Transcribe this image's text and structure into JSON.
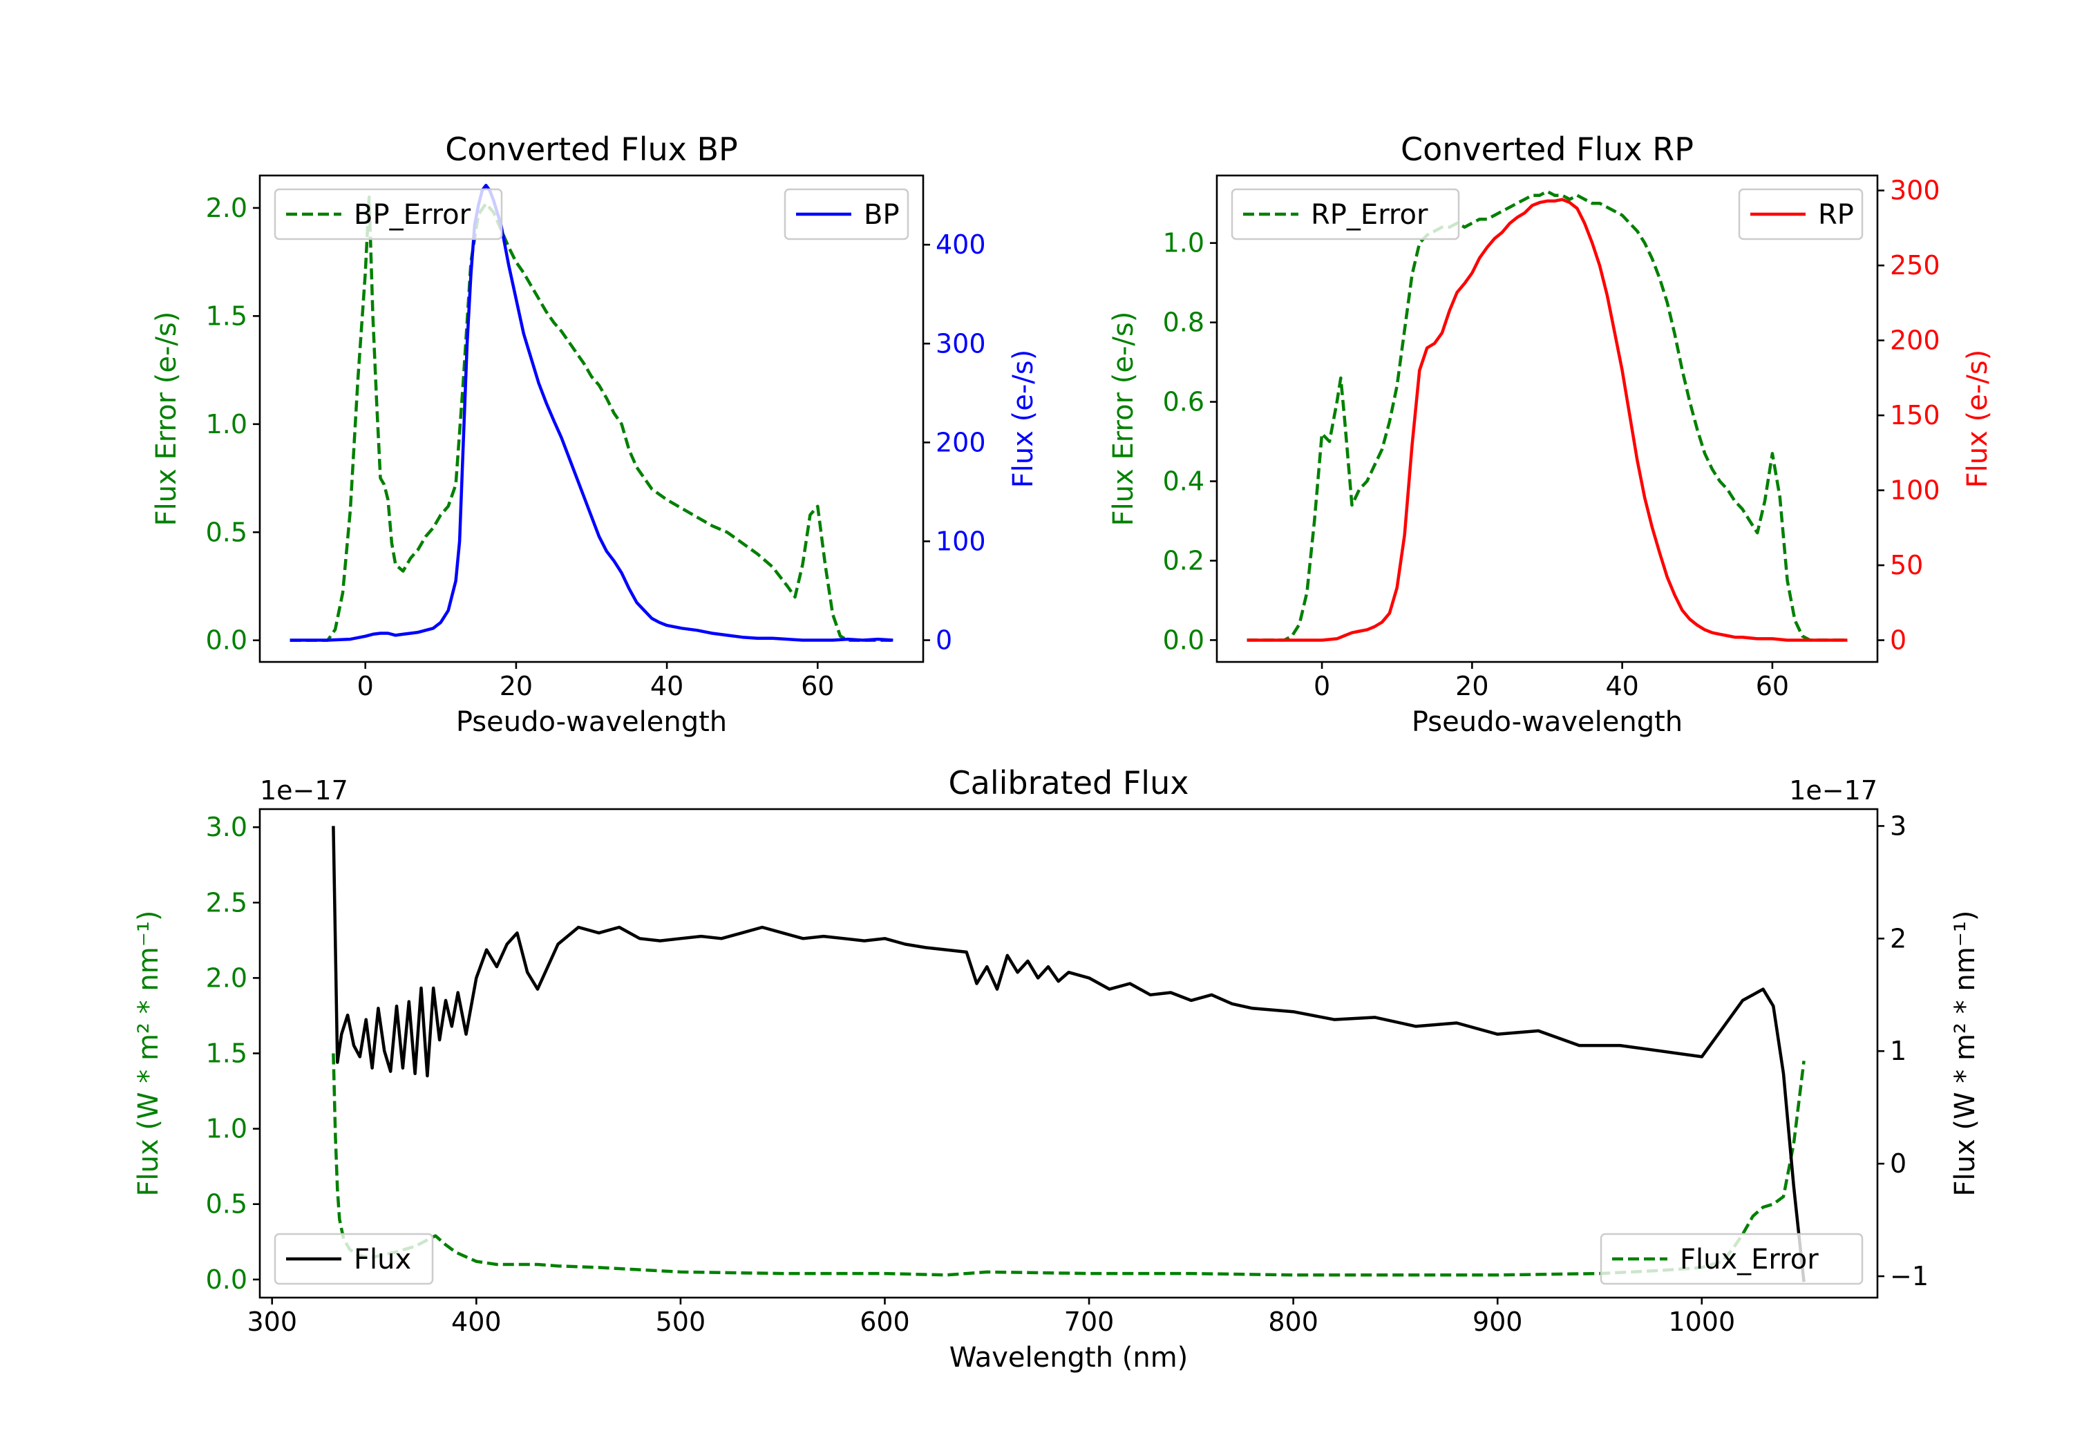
{
  "colors": {
    "green": "#008000",
    "blue": "#0000ff",
    "red": "#ff0000",
    "black": "#000000"
  },
  "chart_data": [
    {
      "id": "bp",
      "type": "line",
      "title": "Converted Flux BP",
      "xlabel": "Pseudo-wavelength",
      "ylabel_left": "Flux Error (e-/s)",
      "ylabel_right": "Flux (e-/s)",
      "xlim": [
        -14,
        74
      ],
      "ylim_left": [
        -0.1,
        2.15
      ],
      "ylim_right": [
        -22,
        470
      ],
      "xticks": [
        0,
        20,
        40,
        60
      ],
      "xtick_labels": [
        "0",
        "20",
        "40",
        "60"
      ],
      "yticks_left": [
        0.0,
        0.5,
        1.0,
        1.5,
        2.0
      ],
      "ytick_labels_left": [
        "0.0",
        "0.5",
        "1.0",
        "1.5",
        "2.0"
      ],
      "yticks_right": [
        0,
        100,
        200,
        300,
        400
      ],
      "ytick_labels_right": [
        "0",
        "100",
        "200",
        "300",
        "400"
      ],
      "legend_left": {
        "label": "BP_Error",
        "position": "upper left"
      },
      "legend_right": {
        "label": "BP",
        "position": "upper right"
      },
      "series": [
        {
          "name": "BP_Error",
          "axis": "left",
          "style": "dashed",
          "color": "#008000",
          "x": [
            -10,
            -5,
            -4,
            -3,
            -2,
            -1,
            0,
            0.5,
            1,
            1.5,
            2,
            2.5,
            3,
            3.5,
            4,
            5,
            6,
            7,
            8,
            9,
            10,
            11,
            12,
            13,
            14,
            15,
            16,
            17,
            18,
            19,
            20,
            21,
            22,
            23,
            24,
            25,
            26,
            27,
            28,
            29,
            30,
            31,
            32,
            33,
            34,
            35,
            36,
            37,
            38,
            40,
            42,
            44,
            46,
            48,
            50,
            52,
            54,
            56,
            57,
            58,
            59,
            60,
            61,
            62,
            63,
            64,
            65,
            66,
            67,
            68,
            69,
            70
          ],
          "y": [
            0.0,
            0.0,
            0.05,
            0.22,
            0.6,
            1.2,
            1.7,
            2.05,
            1.5,
            1.1,
            0.75,
            0.72,
            0.65,
            0.45,
            0.35,
            0.32,
            0.38,
            0.42,
            0.48,
            0.52,
            0.58,
            0.62,
            0.72,
            1.2,
            1.75,
            1.97,
            2.02,
            1.98,
            1.9,
            1.82,
            1.75,
            1.7,
            1.64,
            1.58,
            1.52,
            1.47,
            1.43,
            1.38,
            1.33,
            1.28,
            1.22,
            1.18,
            1.12,
            1.05,
            1.0,
            0.88,
            0.8,
            0.75,
            0.7,
            0.65,
            0.61,
            0.57,
            0.53,
            0.5,
            0.45,
            0.4,
            0.34,
            0.25,
            0.2,
            0.35,
            0.58,
            0.62,
            0.35,
            0.12,
            0.02,
            0.0,
            0.0,
            0.0,
            0.0,
            0.0,
            0.0,
            0.0
          ]
        },
        {
          "name": "BP",
          "axis": "right",
          "style": "solid",
          "color": "#0000ff",
          "x": [
            -10,
            -5,
            -2,
            0,
            1,
            2,
            3,
            4,
            5,
            6,
            7,
            8,
            9,
            10,
            11,
            12,
            12.5,
            13,
            13.5,
            14,
            14.5,
            15,
            15.5,
            16,
            16.5,
            17,
            18,
            19,
            20,
            21,
            22,
            23,
            24,
            25,
            26,
            27,
            28,
            29,
            30,
            31,
            32,
            33,
            34,
            35,
            36,
            37,
            38,
            39,
            40,
            42,
            44,
            46,
            48,
            50,
            52,
            54,
            56,
            58,
            60,
            62,
            64,
            66,
            68,
            70
          ],
          "y": [
            0,
            0,
            1,
            4,
            6,
            7,
            7,
            5,
            6,
            7,
            8,
            10,
            12,
            18,
            30,
            60,
            100,
            200,
            300,
            370,
            420,
            440,
            455,
            460,
            455,
            445,
            420,
            380,
            345,
            310,
            285,
            260,
            240,
            222,
            205,
            185,
            165,
            145,
            125,
            105,
            90,
            80,
            68,
            52,
            38,
            30,
            22,
            18,
            15,
            12,
            10,
            7,
            5,
            3,
            2,
            2,
            1,
            0,
            0,
            0,
            1,
            0,
            1,
            0
          ]
        }
      ]
    },
    {
      "id": "rp",
      "type": "line",
      "title": "Converted Flux RP",
      "xlabel": "Pseudo-wavelength",
      "ylabel_left": "Flux Error (e-/s)",
      "ylabel_right": "Flux (e-/s)",
      "xlim": [
        -14,
        74
      ],
      "ylim_left": [
        -0.055,
        1.17
      ],
      "ylim_right": [
        -14.5,
        310
      ],
      "xticks": [
        0,
        20,
        40,
        60
      ],
      "xtick_labels": [
        "0",
        "20",
        "40",
        "60"
      ],
      "yticks_left": [
        0.0,
        0.2,
        0.4,
        0.6,
        0.8,
        1.0
      ],
      "ytick_labels_left": [
        "0.0",
        "0.2",
        "0.4",
        "0.6",
        "0.8",
        "1.0"
      ],
      "yticks_right": [
        0,
        50,
        100,
        150,
        200,
        250,
        300
      ],
      "ytick_labels_right": [
        "0",
        "50",
        "100",
        "150",
        "200",
        "250",
        "300"
      ],
      "legend_left": {
        "label": "RP_Error",
        "position": "upper left"
      },
      "legend_right": {
        "label": "RP",
        "position": "upper right"
      },
      "series": [
        {
          "name": "RP_Error",
          "axis": "left",
          "style": "dashed",
          "color": "#008000",
          "x": [
            -10,
            -5,
            -4,
            -3,
            -2,
            -1,
            0,
            1,
            2,
            2.5,
            3,
            4,
            5,
            6,
            7,
            8,
            9,
            10,
            11,
            12,
            13,
            14,
            15,
            16,
            17,
            18,
            19,
            20,
            21,
            22,
            23,
            24,
            25,
            26,
            27,
            28,
            29,
            30,
            31,
            32,
            33,
            34,
            35,
            36,
            37,
            38,
            39,
            40,
            41,
            42,
            43,
            44,
            45,
            46,
            47,
            48,
            49,
            50,
            51,
            52,
            53,
            54,
            55,
            56,
            57,
            58,
            59,
            60,
            61,
            62,
            63,
            64,
            65,
            66,
            68,
            70
          ],
          "y": [
            0.0,
            0.0,
            0.01,
            0.04,
            0.12,
            0.3,
            0.52,
            0.5,
            0.6,
            0.66,
            0.56,
            0.34,
            0.38,
            0.4,
            0.44,
            0.48,
            0.55,
            0.64,
            0.78,
            0.92,
            1.0,
            1.02,
            1.03,
            1.04,
            1.04,
            1.05,
            1.04,
            1.05,
            1.06,
            1.06,
            1.07,
            1.08,
            1.09,
            1.1,
            1.11,
            1.12,
            1.12,
            1.13,
            1.12,
            1.12,
            1.11,
            1.12,
            1.11,
            1.1,
            1.1,
            1.09,
            1.08,
            1.07,
            1.05,
            1.03,
            1.0,
            0.96,
            0.91,
            0.85,
            0.77,
            0.68,
            0.6,
            0.53,
            0.47,
            0.43,
            0.4,
            0.38,
            0.35,
            0.33,
            0.3,
            0.27,
            0.35,
            0.47,
            0.36,
            0.15,
            0.05,
            0.01,
            0.0,
            0.0,
            0.0,
            0.0
          ]
        },
        {
          "name": "RP",
          "axis": "right",
          "style": "solid",
          "color": "#ff0000",
          "x": [
            -10,
            -5,
            0,
            2,
            3,
            4,
            5,
            6,
            7,
            8,
            9,
            10,
            11,
            12,
            13,
            14,
            15,
            16,
            17,
            18,
            19,
            20,
            21,
            22,
            23,
            24,
            25,
            26,
            27,
            28,
            29,
            30,
            31,
            32,
            33,
            34,
            35,
            36,
            37,
            38,
            39,
            40,
            41,
            42,
            43,
            44,
            45,
            46,
            47,
            48,
            49,
            50,
            51,
            52,
            53,
            54,
            55,
            56,
            58,
            60,
            62,
            64,
            66,
            68,
            70
          ],
          "y": [
            0,
            0,
            0,
            1,
            3,
            5,
            6,
            7,
            9,
            12,
            18,
            35,
            70,
            130,
            180,
            195,
            198,
            205,
            220,
            232,
            238,
            245,
            255,
            262,
            268,
            272,
            278,
            282,
            285,
            290,
            292,
            293,
            293,
            294,
            292,
            288,
            278,
            265,
            250,
            230,
            205,
            180,
            150,
            120,
            95,
            75,
            58,
            42,
            30,
            20,
            14,
            10,
            7,
            5,
            4,
            3,
            2,
            2,
            1,
            1,
            0,
            0,
            0,
            0,
            0
          ]
        }
      ]
    },
    {
      "id": "cal",
      "type": "line",
      "title": "Calibrated Flux",
      "xlabel": "Wavelength (nm)",
      "ylabel_left": "Flux (W * m² * nm⁻¹)",
      "ylabel_right": "Flux (W * m² * nm⁻¹)",
      "offset_left": "1e−17",
      "offset_right": "1e−17",
      "xlim": [
        294,
        1086
      ],
      "ylim_left": [
        -0.12,
        3.12
      ],
      "ylim_right": [
        -1.19,
        3.15
      ],
      "xticks": [
        300,
        400,
        500,
        600,
        700,
        800,
        900,
        1000
      ],
      "xtick_labels": [
        "300",
        "400",
        "500",
        "600",
        "700",
        "800",
        "900",
        "1000"
      ],
      "yticks_left": [
        0.0,
        0.5,
        1.0,
        1.5,
        2.0,
        2.5,
        3.0
      ],
      "ytick_labels_left": [
        "0.0",
        "0.5",
        "1.0",
        "1.5",
        "2.0",
        "2.5",
        "3.0"
      ],
      "yticks_right": [
        -1,
        0,
        1,
        2,
        3
      ],
      "ytick_labels_right": [
        "−1",
        "0",
        "1",
        "2",
        "3"
      ],
      "legend_left": {
        "label": "Flux",
        "position": "lower left"
      },
      "legend_right": {
        "label": "Flux_Error",
        "position": "lower right"
      },
      "series": [
        {
          "name": "Flux_Error",
          "axis": "left",
          "style": "dashed",
          "color": "#008000",
          "x": [
            330,
            331,
            332,
            333,
            335,
            338,
            342,
            346,
            350,
            360,
            370,
            380,
            385,
            390,
            400,
            410,
            420,
            430,
            440,
            460,
            500,
            550,
            600,
            630,
            640,
            650,
            700,
            750,
            800,
            850,
            900,
            950,
            980,
            1000,
            1010,
            1015,
            1020,
            1025,
            1030,
            1035,
            1040,
            1045,
            1050
          ],
          "y": [
            1.5,
            0.95,
            0.6,
            0.4,
            0.27,
            0.2,
            0.16,
            0.15,
            0.15,
            0.18,
            0.22,
            0.29,
            0.23,
            0.18,
            0.12,
            0.1,
            0.1,
            0.1,
            0.09,
            0.08,
            0.05,
            0.04,
            0.04,
            0.03,
            0.04,
            0.05,
            0.04,
            0.04,
            0.03,
            0.03,
            0.03,
            0.04,
            0.06,
            0.08,
            0.12,
            0.2,
            0.3,
            0.42,
            0.48,
            0.5,
            0.55,
            0.9,
            1.45
          ]
        },
        {
          "name": "Flux",
          "axis": "right",
          "style": "solid",
          "color": "#000000",
          "x": [
            330,
            332,
            334,
            337,
            340,
            343,
            346,
            349,
            352,
            355,
            358,
            361,
            364,
            367,
            370,
            373,
            376,
            379,
            382,
            385,
            388,
            391,
            395,
            400,
            405,
            410,
            415,
            420,
            425,
            430,
            440,
            450,
            460,
            470,
            480,
            490,
            500,
            510,
            520,
            530,
            540,
            550,
            560,
            570,
            580,
            590,
            600,
            610,
            620,
            630,
            640,
            645,
            650,
            655,
            660,
            665,
            670,
            675,
            680,
            685,
            690,
            700,
            710,
            720,
            730,
            740,
            750,
            760,
            770,
            780,
            800,
            820,
            840,
            860,
            880,
            900,
            920,
            940,
            960,
            980,
            1000,
            1010,
            1020,
            1030,
            1035,
            1040,
            1045,
            1050
          ],
          "y": [
            3.0,
            0.9,
            1.15,
            1.32,
            1.05,
            0.95,
            1.28,
            0.85,
            1.38,
            1.0,
            0.82,
            1.4,
            0.85,
            1.44,
            0.8,
            1.56,
            0.78,
            1.56,
            1.1,
            1.45,
            1.22,
            1.52,
            1.15,
            1.65,
            1.9,
            1.75,
            1.95,
            2.05,
            1.7,
            1.55,
            1.95,
            2.1,
            2.05,
            2.1,
            2.0,
            1.98,
            2.0,
            2.02,
            2.0,
            2.05,
            2.1,
            2.05,
            2.0,
            2.02,
            2.0,
            1.98,
            2.0,
            1.95,
            1.92,
            1.9,
            1.88,
            1.6,
            1.75,
            1.55,
            1.85,
            1.7,
            1.8,
            1.65,
            1.75,
            1.62,
            1.7,
            1.65,
            1.55,
            1.6,
            1.5,
            1.52,
            1.45,
            1.5,
            1.42,
            1.38,
            1.35,
            1.28,
            1.3,
            1.22,
            1.25,
            1.15,
            1.18,
            1.05,
            1.05,
            1.0,
            0.95,
            1.2,
            1.45,
            1.55,
            1.4,
            0.8,
            -0.2,
            -1.05
          ]
        }
      ]
    }
  ]
}
